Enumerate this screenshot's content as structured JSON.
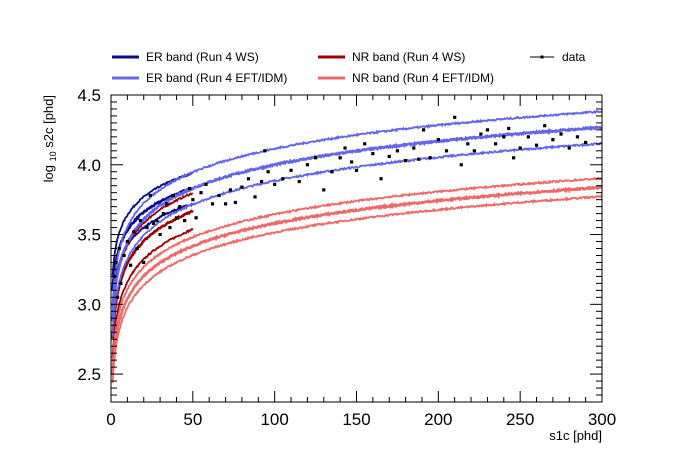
{
  "chart_data": {
    "type": "scatter",
    "title": "",
    "xlabel": "s1c [phd]",
    "ylabel_prefix": "log",
    "ylabel_sub": "10",
    "ylabel_suffix": " s2c [phd]",
    "xlim": [
      0,
      300
    ],
    "ylim": [
      2.3,
      4.5
    ],
    "x_ticks": [
      0,
      50,
      100,
      150,
      200,
      250,
      300
    ],
    "x_tick_labels": [
      "0",
      "50",
      "100",
      "150",
      "200",
      "250",
      "300"
    ],
    "y_ticks": [
      2.5,
      3.0,
      3.5,
      4.0,
      4.5
    ],
    "y_tick_labels": [
      "2.5",
      "3.0",
      "3.5",
      "4.0",
      "4.5"
    ],
    "grid": false,
    "legend_position": "top",
    "series": [
      {
        "name": "ER band (Run 4 WS)",
        "color": "#0a0a8c",
        "style": "band",
        "x_range": [
          1,
          50
        ],
        "center": {
          "a": 3.1,
          "b": 0.43
        },
        "offsets": [
          -0.11,
          0.0,
          0.11
        ]
      },
      {
        "name": "NR band (Run 4 WS)",
        "color": "#9b0000",
        "style": "band",
        "x_range": [
          1,
          50
        ],
        "center": {
          "a": 2.75,
          "b": 0.54
        },
        "offsets": [
          -0.13,
          0.0,
          0.13
        ]
      },
      {
        "name": "ER band (Run 4 EFT/IDM)",
        "color": "#6464ec",
        "style": "band",
        "x_range": [
          1,
          300
        ],
        "center": {
          "a": 2.88,
          "b": 0.56
        },
        "offsets": [
          -0.115,
          0.0,
          0.115
        ]
      },
      {
        "name": "NR band (Run 4 EFT/IDM)",
        "color": "#ee6a6a",
        "style": "band",
        "x_range": [
          1,
          300
        ],
        "center": {
          "a": 2.5,
          "b": 0.54
        },
        "offsets": [
          -0.065,
          0.0,
          0.065
        ]
      },
      {
        "name": "data",
        "color": "#000000",
        "style": "points",
        "points": [
          [
            2,
            3.2
          ],
          [
            3,
            3.3
          ],
          [
            4,
            3.05
          ],
          [
            5,
            3.4
          ],
          [
            6,
            3.15
          ],
          [
            8,
            3.35
          ],
          [
            10,
            3.45
          ],
          [
            12,
            3.28
          ],
          [
            14,
            3.52
          ],
          [
            16,
            3.4
          ],
          [
            18,
            3.6
          ],
          [
            20,
            3.3
          ],
          [
            22,
            3.55
          ],
          [
            24,
            3.78
          ],
          [
            26,
            3.58
          ],
          [
            28,
            3.6
          ],
          [
            30,
            3.5
          ],
          [
            32,
            3.65
          ],
          [
            34,
            3.72
          ],
          [
            36,
            3.55
          ],
          [
            38,
            3.78
          ],
          [
            40,
            3.62
          ],
          [
            42,
            3.7
          ],
          [
            45,
            3.6
          ],
          [
            48,
            3.83
          ],
          [
            50,
            3.75
          ],
          [
            52,
            3.62
          ],
          [
            55,
            3.8
          ],
          [
            58,
            3.86
          ],
          [
            62,
            3.72
          ],
          [
            66,
            3.78
          ],
          [
            70,
            3.72
          ],
          [
            73,
            3.82
          ],
          [
            76,
            3.73
          ],
          [
            80,
            3.84
          ],
          [
            84,
            3.9
          ],
          [
            88,
            3.77
          ],
          [
            92,
            3.88
          ],
          [
            94,
            4.1
          ],
          [
            96,
            3.95
          ],
          [
            100,
            3.86
          ],
          [
            105,
            3.9
          ],
          [
            110,
            3.96
          ],
          [
            115,
            3.88
          ],
          [
            120,
            4.0
          ],
          [
            125,
            4.05
          ],
          [
            130,
            3.82
          ],
          [
            135,
            3.95
          ],
          [
            140,
            4.05
          ],
          [
            143,
            4.12
          ],
          [
            147,
            4.02
          ],
          [
            150,
            3.96
          ],
          [
            155,
            4.15
          ],
          [
            160,
            4.08
          ],
          [
            165,
            3.9
          ],
          [
            170,
            4.06
          ],
          [
            175,
            4.1
          ],
          [
            180,
            4.03
          ],
          [
            185,
            4.12
          ],
          [
            188,
            4.04
          ],
          [
            191,
            4.25
          ],
          [
            195,
            4.05
          ],
          [
            200,
            4.18
          ],
          [
            205,
            4.1
          ],
          [
            210,
            4.34
          ],
          [
            214,
            4.0
          ],
          [
            218,
            4.15
          ],
          [
            222,
            4.1
          ],
          [
            226,
            4.22
          ],
          [
            230,
            4.25
          ],
          [
            235,
            4.15
          ],
          [
            240,
            4.2
          ],
          [
            243,
            4.26
          ],
          [
            246,
            4.05
          ],
          [
            250,
            4.12
          ],
          [
            255,
            4.2
          ],
          [
            260,
            4.14
          ],
          [
            265,
            4.28
          ],
          [
            270,
            4.18
          ],
          [
            275,
            4.22
          ],
          [
            280,
            4.12
          ],
          [
            285,
            4.2
          ],
          [
            290,
            4.16
          ]
        ]
      }
    ]
  }
}
